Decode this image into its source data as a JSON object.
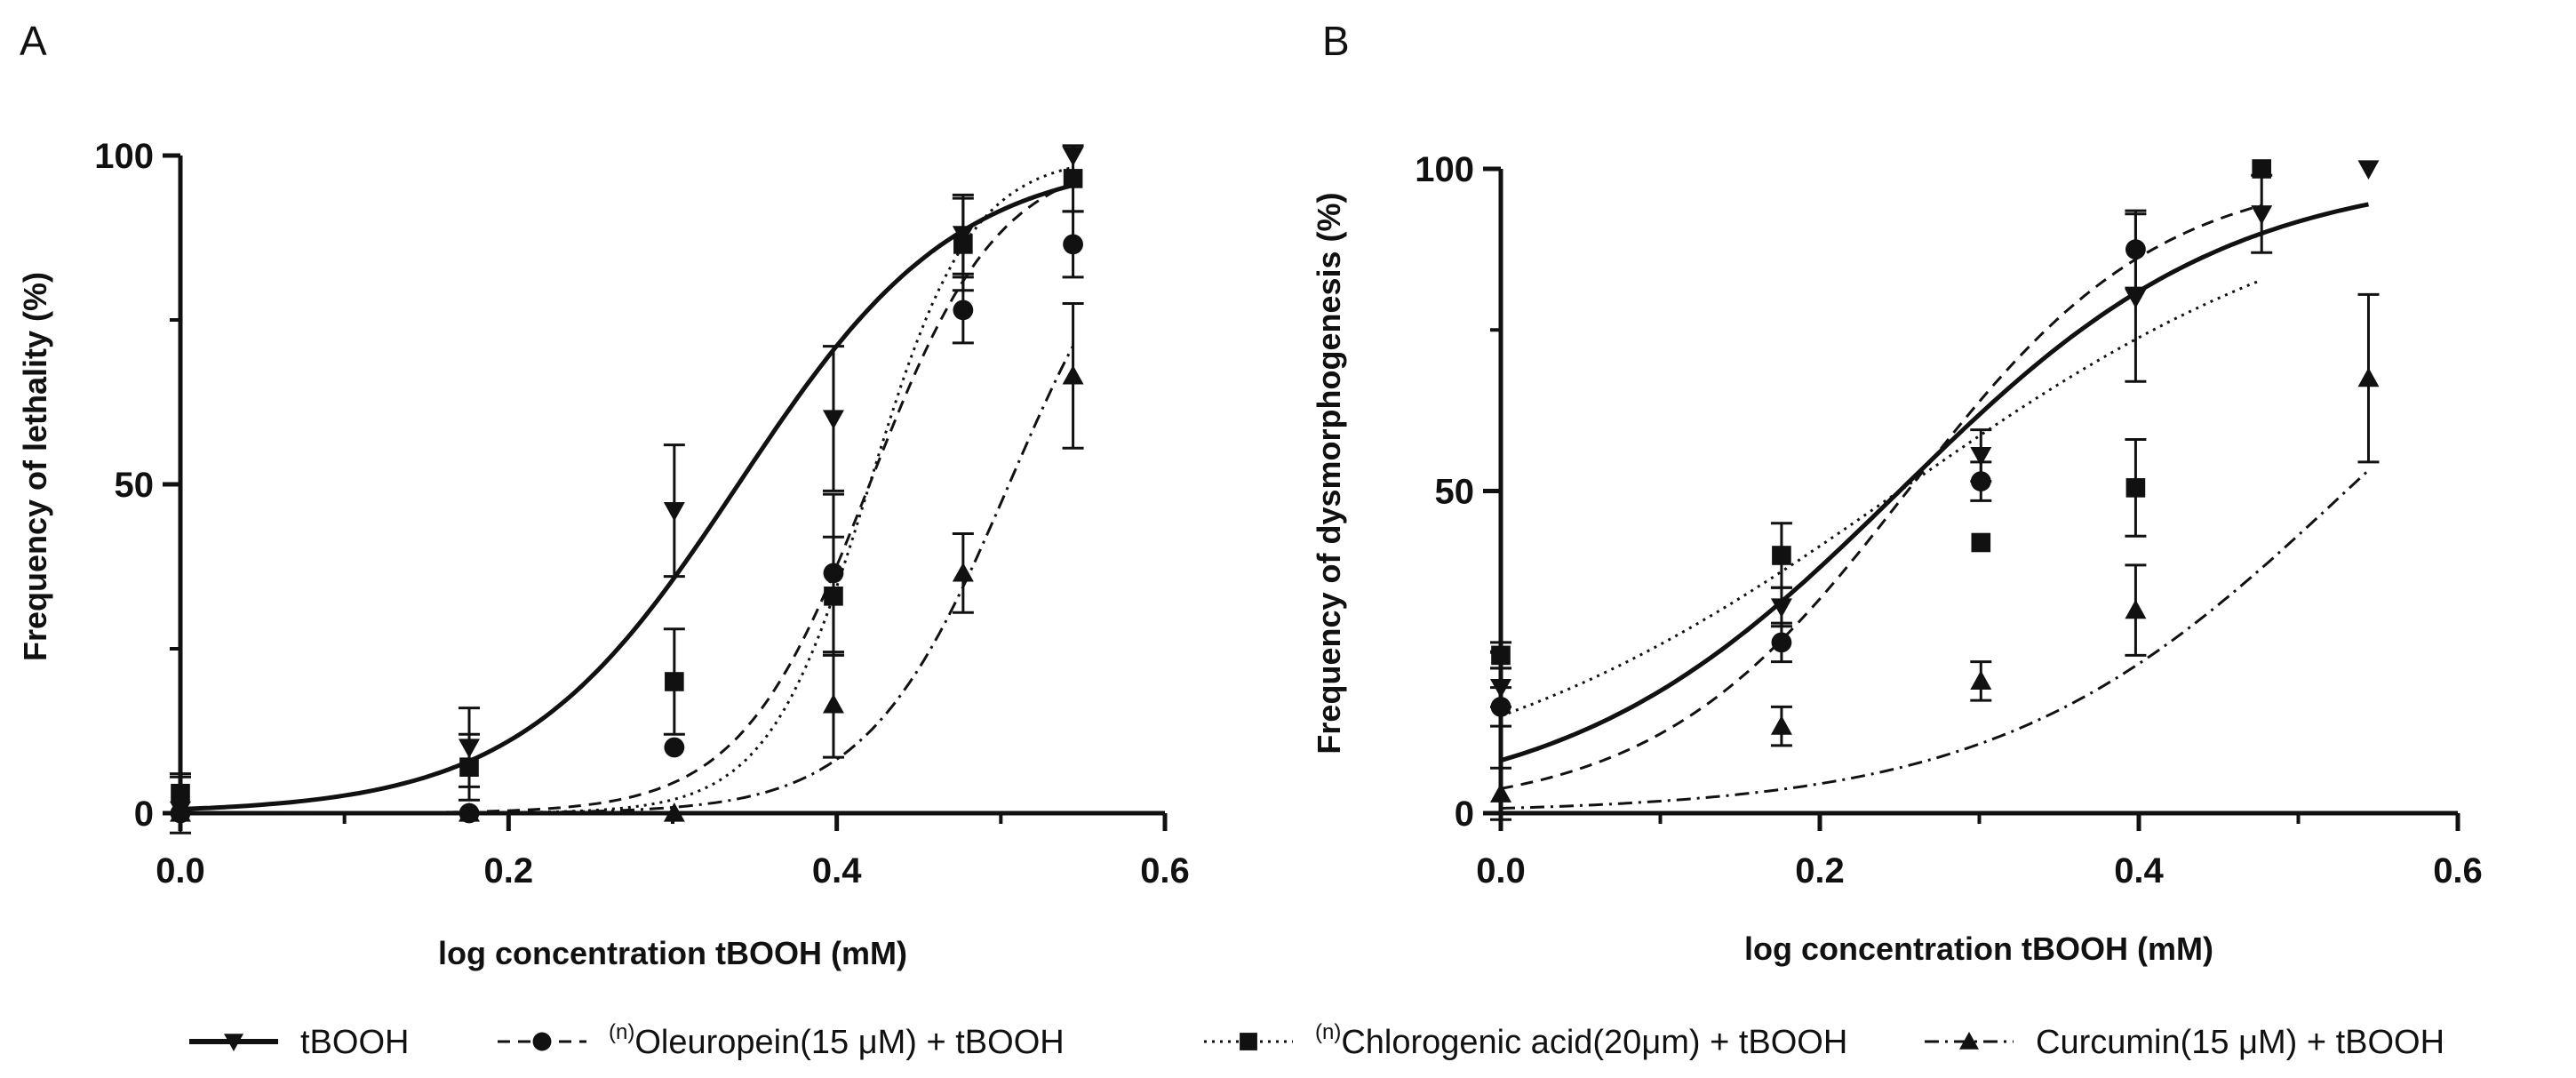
{
  "chart_data": [
    {
      "type": "scatter",
      "panel_label": "A",
      "xlabel": "log concentration tBOOH (mM)",
      "ylabel": "Frequency of lethality (%)",
      "xlim": [
        0,
        0.6
      ],
      "ylim": [
        0,
        100
      ],
      "xticks": [
        "0.0",
        "0.2",
        "0.4",
        "0.6"
      ],
      "yticks": [
        "0",
        "50",
        "100"
      ],
      "grid": false,
      "series": [
        {
          "name": "tBOOH",
          "marker": "triangle-down",
          "line": "solid",
          "x": [
            0,
            0.176,
            0.301,
            0.398,
            0.477,
            0.544
          ],
          "y": [
            0.5,
            10,
            46,
            60,
            88,
            100
          ],
          "err": [
            5,
            6,
            10,
            11,
            6,
            0
          ],
          "fit": {
            "bottom": 0,
            "top": 100,
            "logEC50": 0.34,
            "hill": 6.5
          }
        },
        {
          "name": "Oleuropein(15 μM) + tBOOH",
          "marker": "circle",
          "line": "dashed",
          "x": [
            0,
            0.176,
            0.301,
            0.398,
            0.477,
            0.544
          ],
          "y": [
            0,
            0,
            10,
            36.5,
            76.5,
            86.5
          ],
          "err": [
            0,
            0,
            0,
            12,
            5,
            5
          ],
          "fit": {
            "bottom": 0,
            "top": 100,
            "logEC50": 0.42,
            "hill": 11
          }
        },
        {
          "name": "Chlorogenic acid(20μm) + tBOOH",
          "marker": "square",
          "line": "dotted",
          "x": [
            0,
            0.176,
            0.301,
            0.398,
            0.477,
            0.544
          ],
          "y": [
            3,
            7,
            20,
            33,
            86.5,
            96.5
          ],
          "err": [
            3,
            5,
            8,
            9,
            7,
            5
          ],
          "fit": {
            "bottom": 0,
            "top": 100,
            "logEC50": 0.42,
            "hill": 14
          }
        },
        {
          "name": "Curcumin(15 μM) + tBOOH",
          "marker": "triangle-up",
          "line": "dashdot",
          "x": [
            0,
            0.176,
            0.301,
            0.398,
            0.477,
            0.544
          ],
          "y": [
            0,
            0,
            0,
            16.5,
            36.5,
            66.5
          ],
          "err": [
            0,
            0,
            0,
            8,
            6,
            11
          ],
          "fit": {
            "bottom": 0,
            "top": 100,
            "logEC50": 0.505,
            "hill": 10
          }
        }
      ]
    },
    {
      "type": "scatter",
      "panel_label": "B",
      "xlabel": "log concentration tBOOH (mM)",
      "ylabel": "Frequency of dysmorphogenesis (%)",
      "xlim": [
        0,
        0.6
      ],
      "ylim": [
        0,
        100
      ],
      "xticks": [
        "0.0",
        "0.2",
        "0.4",
        "0.6"
      ],
      "yticks": [
        "0",
        "50",
        "100"
      ],
      "grid": false,
      "series": [
        {
          "name": "tBOOH",
          "marker": "triangle-down",
          "line": "solid",
          "x": [
            0,
            0.176,
            0.301,
            0.398,
            0.477,
            0.544
          ],
          "y": [
            19.5,
            32,
            55.5,
            80,
            93,
            100
          ],
          "err": [
            3,
            3,
            4,
            13,
            6,
            0
          ],
          "fit": {
            "bottom": 0,
            "top": 100,
            "logEC50": 0.25,
            "hill": 4.2,
            "xmax": 0.544
          }
        },
        {
          "name": "Oleuropein(15 μM) + tBOOH",
          "marker": "circle",
          "line": "dashed",
          "x": [
            0,
            0.176,
            0.301,
            0.398
          ],
          "y": [
            16.5,
            26.5,
            51.5,
            87.5
          ],
          "err": [
            3,
            3,
            3,
            6
          ],
          "fit": {
            "bottom": 0,
            "top": 100,
            "logEC50": 0.255,
            "hill": 5.5,
            "xmax": 0.477
          }
        },
        {
          "name": "Chlorogenic acid(20μm) + tBOOH",
          "marker": "square",
          "line": "dotted",
          "x": [
            0,
            0.176,
            0.301,
            0.398,
            0.477
          ],
          "y": [
            24.5,
            40,
            42,
            50.5,
            100
          ],
          "err": [
            2,
            5,
            0,
            7.5,
            0
          ],
          "fit": {
            "bottom": 0,
            "top": 100,
            "logEC50": 0.25,
            "hill": 3.0,
            "xmax": 0.477
          }
        },
        {
          "name": "Curcumin(15 μM) + tBOOH",
          "marker": "triangle-up",
          "line": "dashdot",
          "x": [
            0,
            0.176,
            0.301,
            0.398,
            0.544
          ],
          "y": [
            3,
            13.5,
            20.5,
            31.5,
            67.5
          ],
          "err": [
            4,
            3,
            3,
            7,
            13
          ],
          "fit": {
            "bottom": 0,
            "top": 100,
            "logEC50": 0.53,
            "hill": 4.0,
            "xmax": 0.544
          }
        }
      ]
    }
  ],
  "legend": [
    {
      "name": "tBOOH",
      "superscript": "",
      "text": "tBOOH",
      "marker": "triangle-down",
      "line": "solid"
    },
    {
      "name": "Oleuropein",
      "superscript": "(n)",
      "text": "Oleuropein(15 μM) + tBOOH",
      "marker": "circle",
      "line": "dashed"
    },
    {
      "name": "Chlorogenic acid",
      "superscript": "(n)",
      "text": "Chlorogenic acid(20μm) + tBOOH",
      "marker": "square",
      "line": "dotted"
    },
    {
      "name": "Curcumin",
      "superscript": "",
      "text": "Curcumin(15 μM) + tBOOH",
      "marker": "triangle-up",
      "line": "dashdot"
    }
  ]
}
